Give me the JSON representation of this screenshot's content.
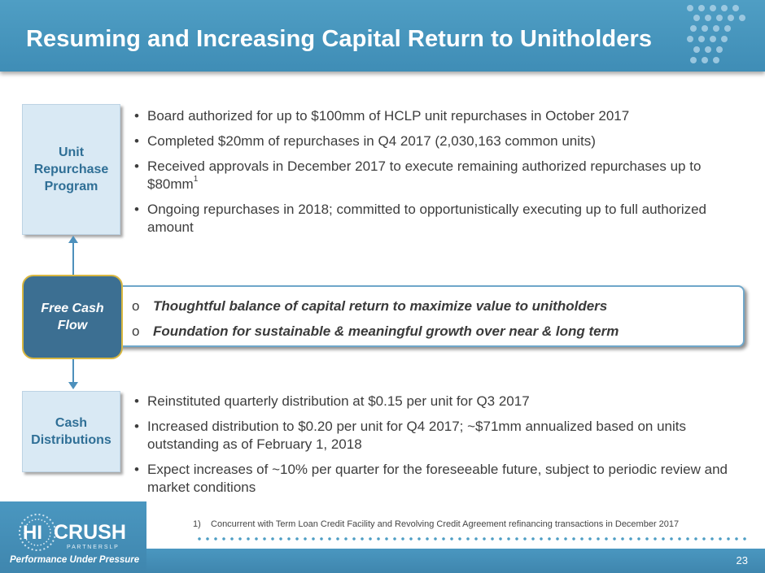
{
  "header": {
    "title": "Resuming and Increasing Capital Return to Unitholders"
  },
  "unit_repurchase": {
    "label_lines": [
      "Unit",
      "Repurchase",
      "Program"
    ],
    "bullets": [
      "Board authorized for up to $100mm of HCLP unit repurchases in October 2017",
      "Completed $20mm of repurchases in Q4 2017 (2,030,163 common units)",
      "Received approvals in December 2017 to execute remaining authorized repurchases up to $80mm",
      "Ongoing repurchases in 2018; committed to opportunistically executing up to full authorized amount"
    ],
    "footnote_marker": "1"
  },
  "free_cash_flow": {
    "label_lines": [
      "Free Cash",
      "Flow"
    ],
    "points": [
      "Thoughtful balance of capital return to maximize value to unitholders",
      "Foundation for sustainable & meaningful growth over near & long term"
    ]
  },
  "cash_distributions": {
    "label_lines": [
      "Cash",
      "Distributions"
    ],
    "bullets": [
      "Reinstituted quarterly distribution at $0.15 per unit for Q3 2017",
      "Increased distribution to $0.20 per unit for Q4 2017; ~$71mm annualized based on units outstanding as of February 1, 2018",
      "Expect increases of ~10% per quarter for the foreseeable future, subject to periodic review and market conditions"
    ]
  },
  "footer": {
    "footnote": "1)    Concurrent with Term Loan Credit Facility and Revolving Credit Agreement refinancing transactions in December 2017",
    "page_number": "23",
    "logo": {
      "hi": "HI",
      "crush": "CRUSH",
      "partners": "P A R T N E R S  L P",
      "tagline": "Performance Under Pressure"
    }
  },
  "colors": {
    "brand_blue": "#4f9ec4",
    "box_fill": "#d9e9f4",
    "box_text": "#2f6f96",
    "fcf_fill": "#3c6f92",
    "fcf_border": "#d8b741"
  }
}
